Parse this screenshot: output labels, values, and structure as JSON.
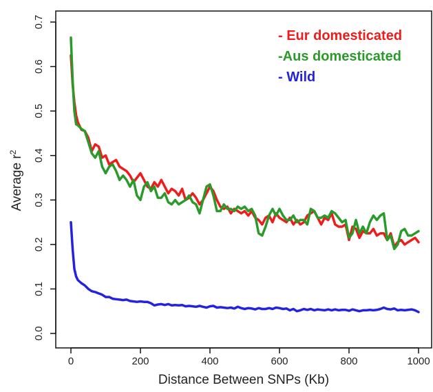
{
  "chart_data": {
    "type": "line",
    "xlabel": "Distance Between SNPs (Kb)",
    "ylabel_main": "Average r",
    "ylabel_sup": "2",
    "xlim": [
      0,
      1000
    ],
    "ylim": [
      0,
      0.7
    ],
    "xticks": [
      0,
      200,
      400,
      600,
      800,
      1000
    ],
    "yticks": [
      0.0,
      0.1,
      0.2,
      0.3,
      0.4,
      0.5,
      0.6,
      0.7
    ],
    "xtick_labels": [
      "0",
      "200",
      "400",
      "600",
      "800",
      "1000"
    ],
    "ytick_labels": [
      "0.0",
      "0.1",
      "0.2",
      "0.3",
      "0.4",
      "0.5",
      "0.6",
      "0.7"
    ],
    "legend_position": "top-right",
    "grid": false,
    "series": [
      {
        "name": "- Eur domesticated",
        "color": "#ee1c1c",
        "x": [
          0,
          5,
          10,
          15,
          20,
          30,
          40,
          50,
          60,
          70,
          80,
          90,
          100,
          110,
          120,
          130,
          140,
          150,
          160,
          170,
          180,
          190,
          200,
          210,
          220,
          230,
          240,
          250,
          260,
          270,
          280,
          290,
          300,
          310,
          320,
          330,
          340,
          350,
          360,
          370,
          380,
          390,
          400,
          410,
          420,
          430,
          440,
          450,
          460,
          470,
          480,
          490,
          500,
          510,
          520,
          530,
          540,
          550,
          560,
          570,
          580,
          590,
          600,
          610,
          620,
          630,
          640,
          650,
          660,
          670,
          680,
          690,
          700,
          710,
          720,
          730,
          740,
          750,
          760,
          770,
          780,
          790,
          800,
          810,
          820,
          830,
          840,
          850,
          860,
          870,
          880,
          890,
          900,
          910,
          920,
          930,
          940,
          950,
          960,
          970,
          980,
          990,
          1000
        ],
        "y": [
          0.625,
          0.56,
          0.52,
          0.49,
          0.475,
          0.458,
          0.455,
          0.44,
          0.41,
          0.425,
          0.42,
          0.395,
          0.4,
          0.38,
          0.385,
          0.39,
          0.375,
          0.37,
          0.365,
          0.355,
          0.34,
          0.35,
          0.36,
          0.345,
          0.33,
          0.325,
          0.34,
          0.33,
          0.345,
          0.33,
          0.315,
          0.325,
          0.32,
          0.31,
          0.325,
          0.3,
          0.305,
          0.315,
          0.305,
          0.29,
          0.3,
          0.315,
          0.33,
          0.32,
          0.3,
          0.285,
          0.28,
          0.285,
          0.27,
          0.28,
          0.275,
          0.27,
          0.275,
          0.265,
          0.275,
          0.26,
          0.255,
          0.245,
          0.26,
          0.265,
          0.25,
          0.27,
          0.26,
          0.255,
          0.25,
          0.26,
          0.245,
          0.255,
          0.245,
          0.25,
          0.265,
          0.27,
          0.275,
          0.26,
          0.245,
          0.26,
          0.255,
          0.27,
          0.245,
          0.24,
          0.24,
          0.245,
          0.21,
          0.24,
          0.235,
          0.215,
          0.23,
          0.225,
          0.225,
          0.235,
          0.22,
          0.225,
          0.225,
          0.21,
          0.225,
          0.195,
          0.205,
          0.21,
          0.2,
          0.205,
          0.21,
          0.215,
          0.205
        ]
      },
      {
        "name": "-Aus domesticated",
        "color": "#2a9a2a",
        "x": [
          0,
          5,
          10,
          15,
          20,
          30,
          40,
          50,
          60,
          70,
          80,
          90,
          100,
          110,
          120,
          130,
          140,
          150,
          160,
          170,
          180,
          190,
          200,
          210,
          220,
          230,
          240,
          250,
          260,
          270,
          280,
          290,
          300,
          310,
          320,
          330,
          340,
          350,
          360,
          370,
          380,
          390,
          400,
          410,
          420,
          430,
          440,
          450,
          460,
          470,
          480,
          490,
          500,
          510,
          520,
          530,
          540,
          550,
          560,
          570,
          580,
          590,
          600,
          610,
          620,
          630,
          640,
          650,
          660,
          670,
          680,
          690,
          700,
          710,
          720,
          730,
          740,
          750,
          760,
          770,
          780,
          790,
          800,
          810,
          820,
          830,
          840,
          850,
          860,
          870,
          880,
          890,
          900,
          910,
          920,
          930,
          940,
          950,
          960,
          970,
          980,
          990,
          1000
        ],
        "y": [
          0.665,
          0.57,
          0.5,
          0.47,
          0.468,
          0.46,
          0.455,
          0.43,
          0.405,
          0.395,
          0.41,
          0.375,
          0.36,
          0.375,
          0.38,
          0.365,
          0.345,
          0.355,
          0.345,
          0.33,
          0.345,
          0.31,
          0.3,
          0.33,
          0.34,
          0.32,
          0.33,
          0.305,
          0.305,
          0.315,
          0.295,
          0.29,
          0.3,
          0.29,
          0.295,
          0.3,
          0.31,
          0.295,
          0.29,
          0.27,
          0.3,
          0.33,
          0.335,
          0.31,
          0.275,
          0.275,
          0.29,
          0.28,
          0.28,
          0.275,
          0.285,
          0.28,
          0.285,
          0.275,
          0.28,
          0.265,
          0.225,
          0.22,
          0.24,
          0.265,
          0.28,
          0.265,
          0.28,
          0.265,
          0.255,
          0.255,
          0.265,
          0.25,
          0.255,
          0.255,
          0.245,
          0.28,
          0.275,
          0.26,
          0.26,
          0.265,
          0.26,
          0.275,
          0.27,
          0.26,
          0.25,
          0.255,
          0.215,
          0.225,
          0.255,
          0.225,
          0.24,
          0.225,
          0.25,
          0.265,
          0.255,
          0.265,
          0.27,
          0.21,
          0.22,
          0.19,
          0.2,
          0.23,
          0.235,
          0.22,
          0.22,
          0.225,
          0.23
        ]
      },
      {
        "name": "- Wild",
        "color": "#2222e0",
        "x": [
          0,
          5,
          10,
          15,
          20,
          30,
          40,
          50,
          60,
          70,
          80,
          90,
          100,
          110,
          120,
          130,
          140,
          150,
          160,
          170,
          180,
          190,
          200,
          210,
          220,
          230,
          240,
          250,
          260,
          270,
          280,
          290,
          300,
          310,
          320,
          330,
          340,
          350,
          360,
          370,
          380,
          390,
          400,
          410,
          420,
          430,
          440,
          450,
          460,
          470,
          480,
          490,
          500,
          510,
          520,
          530,
          540,
          550,
          560,
          570,
          580,
          590,
          600,
          610,
          620,
          630,
          640,
          650,
          660,
          670,
          680,
          690,
          700,
          710,
          720,
          730,
          740,
          750,
          760,
          770,
          780,
          790,
          800,
          810,
          820,
          830,
          840,
          850,
          860,
          870,
          880,
          890,
          900,
          910,
          920,
          930,
          940,
          950,
          960,
          970,
          980,
          990,
          1000
        ],
        "y": [
          0.25,
          0.19,
          0.145,
          0.128,
          0.12,
          0.113,
          0.108,
          0.1,
          0.095,
          0.093,
          0.09,
          0.087,
          0.082,
          0.082,
          0.078,
          0.077,
          0.076,
          0.075,
          0.076,
          0.073,
          0.072,
          0.071,
          0.072,
          0.071,
          0.071,
          0.068,
          0.063,
          0.065,
          0.066,
          0.064,
          0.066,
          0.063,
          0.064,
          0.063,
          0.064,
          0.061,
          0.062,
          0.061,
          0.06,
          0.062,
          0.06,
          0.058,
          0.061,
          0.062,
          0.058,
          0.059,
          0.058,
          0.057,
          0.058,
          0.056,
          0.06,
          0.057,
          0.055,
          0.057,
          0.056,
          0.054,
          0.057,
          0.055,
          0.055,
          0.057,
          0.055,
          0.058,
          0.057,
          0.055,
          0.056,
          0.052,
          0.055,
          0.05,
          0.052,
          0.055,
          0.053,
          0.055,
          0.052,
          0.054,
          0.053,
          0.052,
          0.054,
          0.052,
          0.054,
          0.052,
          0.053,
          0.053,
          0.051,
          0.054,
          0.052,
          0.05,
          0.052,
          0.052,
          0.053,
          0.052,
          0.053,
          0.055,
          0.058,
          0.055,
          0.054,
          0.056,
          0.052,
          0.053,
          0.052,
          0.053,
          0.054,
          0.052,
          0.048
        ]
      }
    ]
  }
}
